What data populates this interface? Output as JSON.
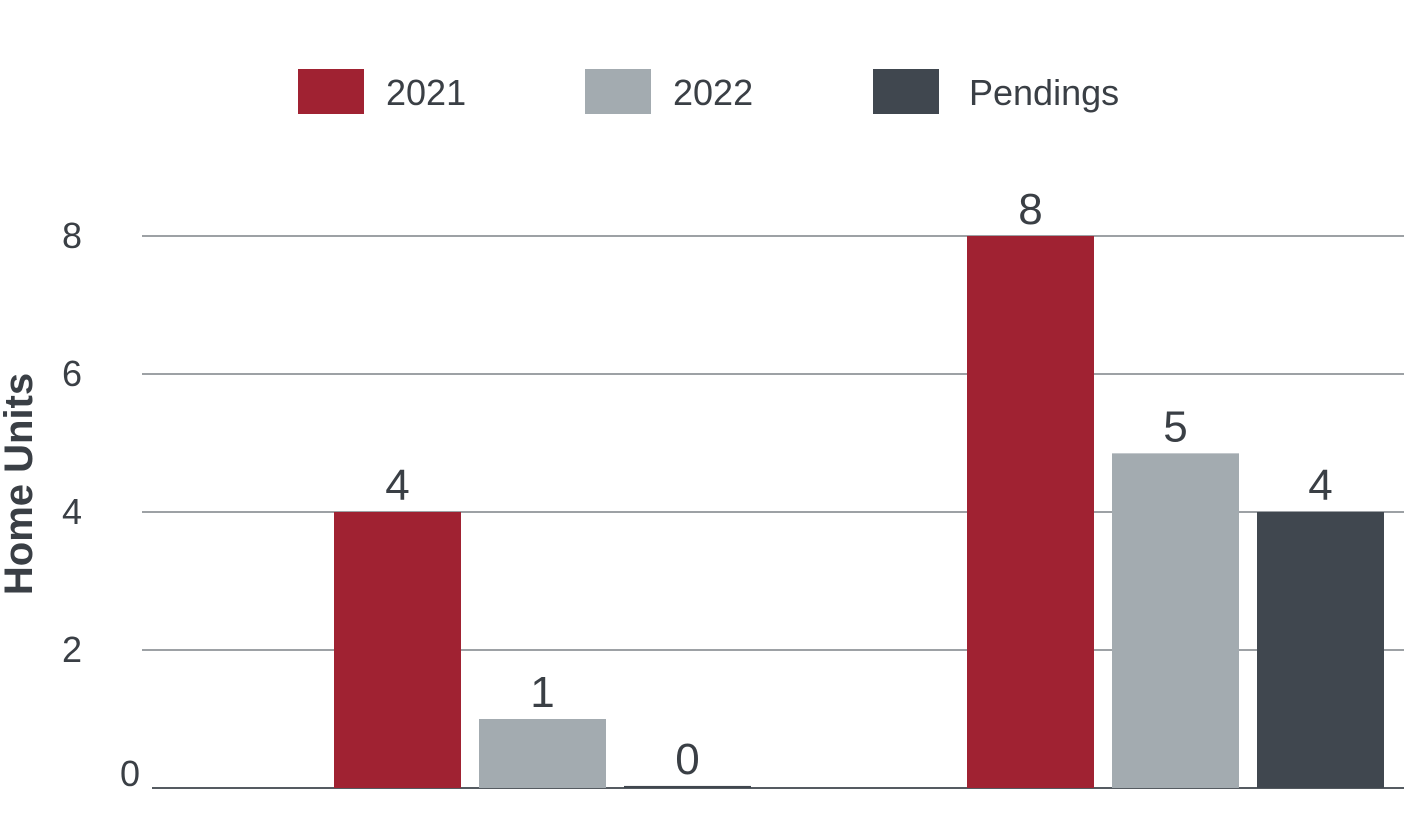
{
  "chart_data": {
    "type": "bar",
    "title": "",
    "xlabel": "",
    "ylabel": "Home Units",
    "ylim": [
      0,
      8
    ],
    "yticks": [
      "0",
      "2",
      "4",
      "6",
      "8"
    ],
    "grid": true,
    "legend_position": "top",
    "categories": [
      "",
      ""
    ],
    "series": [
      {
        "name": "2021",
        "color": "#a02232",
        "values": [
          4,
          8
        ],
        "labels": [
          "4",
          "8"
        ]
      },
      {
        "name": "2022",
        "color": "#a3abb0",
        "values": [
          1,
          4.85
        ],
        "labels": [
          "1",
          "5"
        ]
      },
      {
        "name": "Pendings",
        "color": "#40474f",
        "values": [
          0.03,
          4
        ],
        "labels": [
          "0",
          "4"
        ]
      }
    ]
  }
}
